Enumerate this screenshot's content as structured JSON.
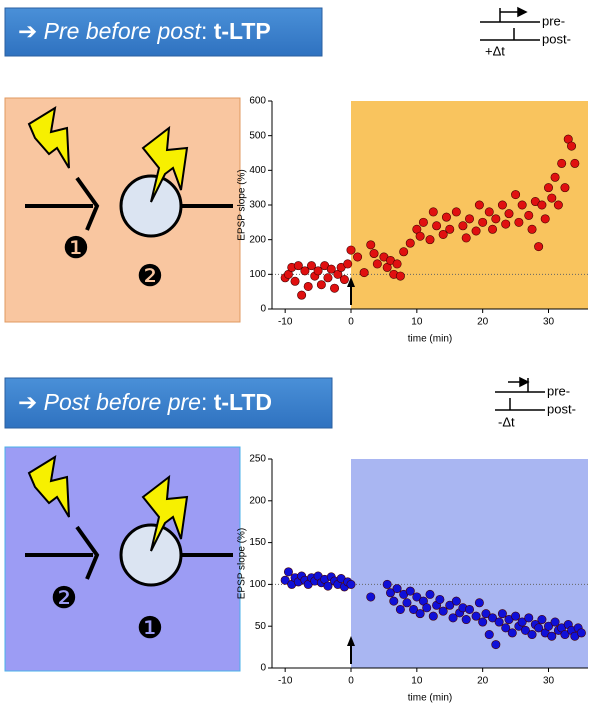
{
  "banners": [
    {
      "arrow": "➔",
      "italic": "Pre before post",
      "sep": ":",
      "bold": "t-LTP"
    },
    {
      "arrow": "➔",
      "italic": "Post before pre",
      "sep": ":",
      "bold": "t-LTD"
    }
  ],
  "timing": [
    {
      "pre": "pre-",
      "post": "post-",
      "dt": "+Δt"
    },
    {
      "pre": "pre-",
      "post": "post-",
      "dt": "-Δt"
    }
  ],
  "diagrams": [
    {
      "left": "❶",
      "right": "❷"
    },
    {
      "left": "❷",
      "right": "❶"
    }
  ],
  "chart_data": [
    {
      "type": "scatter",
      "xlabel": "time (min)",
      "ylabel": "EPSP slope (%)",
      "color": "#e01010",
      "shade_color": "#f9c45e",
      "shade_from": 0,
      "reference_line": 100,
      "xlim": [
        -12,
        36
      ],
      "xticks": [
        -10,
        0,
        10,
        20,
        30
      ],
      "ylim": [
        0,
        600
      ],
      "yticks": [
        0,
        100,
        200,
        300,
        400,
        500,
        600
      ],
      "x": [
        -10,
        -9.5,
        -9,
        -8.5,
        -8,
        -7.5,
        -7,
        -6.5,
        -6,
        -5.5,
        -5,
        -4.5,
        -4,
        -3.5,
        -3,
        -2.5,
        -2,
        -1.5,
        -1,
        -0.5,
        0,
        1,
        2,
        3,
        3.5,
        4,
        5,
        5.5,
        6,
        6.5,
        7,
        7.5,
        8,
        9,
        10,
        10.5,
        11,
        12,
        12.5,
        13,
        14,
        14.5,
        15,
        16,
        17,
        17.5,
        18,
        19,
        19.5,
        20,
        21,
        21.5,
        22,
        23,
        23.5,
        24,
        25,
        25.5,
        26,
        27,
        27.5,
        28,
        28.5,
        29,
        29.5,
        30,
        30.5,
        31,
        31.5,
        32,
        32.5,
        33,
        33.5,
        34
      ],
      "values": [
        90,
        100,
        120,
        80,
        125,
        40,
        110,
        65,
        125,
        95,
        110,
        70,
        125,
        90,
        115,
        60,
        100,
        120,
        85,
        130,
        170,
        150,
        105,
        185,
        160,
        130,
        150,
        120,
        140,
        100,
        130,
        95,
        165,
        190,
        230,
        210,
        250,
        200,
        280,
        240,
        215,
        265,
        230,
        280,
        240,
        205,
        260,
        225,
        300,
        250,
        280,
        230,
        260,
        300,
        245,
        275,
        330,
        250,
        300,
        270,
        230,
        310,
        180,
        300,
        260,
        350,
        320,
        380,
        300,
        420,
        350,
        490,
        470,
        420
      ]
    },
    {
      "type": "scatter",
      "xlabel": "time (min)",
      "ylabel": "EPSP slope (%)",
      "color": "#1010d8",
      "shade_color": "#a9b6f2",
      "shade_from": 0,
      "reference_line": 100,
      "xlim": [
        -12,
        36
      ],
      "xticks": [
        -10,
        0,
        10,
        20,
        30
      ],
      "ylim": [
        0,
        250
      ],
      "yticks": [
        0,
        50,
        100,
        150,
        200,
        250
      ],
      "x": [
        -10,
        -9.5,
        -9,
        -8.5,
        -8,
        -7.5,
        -7,
        -6.5,
        -6,
        -5.5,
        -5,
        -4.5,
        -4,
        -3.5,
        -3,
        -2.5,
        -2,
        -1.5,
        -1,
        -0.5,
        0,
        3,
        5.5,
        6,
        6.5,
        7,
        7.5,
        8,
        8.5,
        9,
        9.5,
        10,
        10.5,
        11,
        11.5,
        12,
        12.5,
        13,
        13.5,
        14,
        15,
        15.5,
        16,
        16.5,
        17,
        17.5,
        18,
        19,
        19.5,
        20,
        20.5,
        21,
        21.5,
        22,
        22.5,
        23,
        23.5,
        24,
        24.5,
        25,
        25.5,
        26,
        26.5,
        27,
        27.5,
        28,
        28.5,
        29,
        29.5,
        30,
        30.5,
        31,
        31.5,
        32,
        32.5,
        33,
        33.5,
        34,
        34.5,
        35
      ],
      "values": [
        105,
        115,
        100,
        108,
        103,
        110,
        105,
        100,
        108,
        104,
        110,
        102,
        106,
        98,
        109,
        104,
        100,
        107,
        97,
        103,
        100,
        85,
        100,
        90,
        80,
        95,
        70,
        88,
        78,
        92,
        70,
        85,
        65,
        80,
        72,
        88,
        62,
        75,
        82,
        68,
        75,
        60,
        80,
        66,
        72,
        58,
        70,
        62,
        78,
        55,
        65,
        40,
        60,
        28,
        55,
        65,
        48,
        58,
        42,
        62,
        50,
        55,
        45,
        60,
        40,
        52,
        48,
        58,
        42,
        50,
        38,
        55,
        45,
        48,
        40,
        52,
        45,
        38,
        48,
        42
      ]
    }
  ]
}
